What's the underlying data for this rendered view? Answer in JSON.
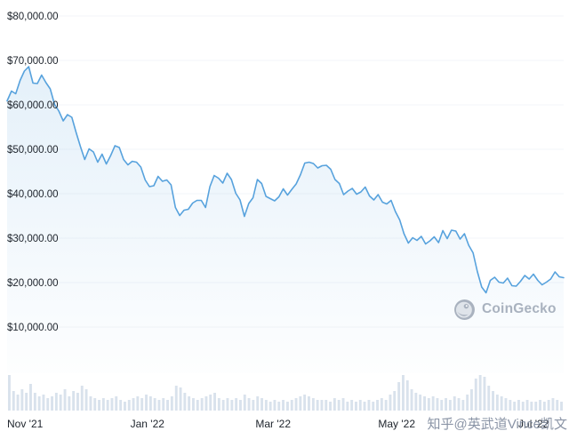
{
  "watermarks": {
    "coingecko_label": "CoinGecko",
    "zhihu": "知乎@英武道Vince凯文"
  },
  "colors": {
    "line": "#57a2dd",
    "area_fill": "#57a2dd",
    "volume": "#d9e2ec",
    "grid": "#f3f5f8",
    "axis_text": "#20262e",
    "watermark_text": "#8a94a6",
    "logo_gray": "#a9b2bf"
  },
  "chart_data": {
    "type": "line",
    "title": "",
    "xlabel": "",
    "ylabel": "",
    "ylim": [
      10000,
      80000
    ],
    "grid": "faint-horizontal",
    "legend": "none",
    "y_ticks": [
      {
        "value": 80000,
        "label": "$80,000.00"
      },
      {
        "value": 70000,
        "label": "$70,000.00"
      },
      {
        "value": 60000,
        "label": "$60,000.00"
      },
      {
        "value": 50000,
        "label": "$50,000.00"
      },
      {
        "value": 40000,
        "label": "$40,000.00"
      },
      {
        "value": 30000,
        "label": "$30,000.00"
      },
      {
        "value": 20000,
        "label": "$20,000.00"
      },
      {
        "value": 10000,
        "label": "$10,000.00"
      }
    ],
    "x_ticks": [
      {
        "label": "Nov '21",
        "f": 0.0,
        "anchor": "start"
      },
      {
        "label": "Jan '22",
        "f": 0.252
      },
      {
        "label": "Mar '22",
        "f": 0.478
      },
      {
        "label": "May '22",
        "f": 0.7
      },
      {
        "label": "Jul '22",
        "f": 0.946
      }
    ],
    "series": [
      {
        "name": "price_usd",
        "values": [
          60900,
          63100,
          62500,
          65500,
          67600,
          68600,
          64900,
          64800,
          66700,
          65000,
          63600,
          60100,
          58600,
          56400,
          57800,
          57200,
          53800,
          50600,
          47700,
          50100,
          49400,
          47100,
          48900,
          46700,
          48600,
          50800,
          50400,
          47700,
          46500,
          47300,
          47100,
          46000,
          43100,
          41600,
          41800,
          43900,
          42800,
          43100,
          42000,
          36900,
          35100,
          36300,
          36500,
          37900,
          38500,
          38500,
          36900,
          41600,
          44100,
          43500,
          42400,
          44600,
          43200,
          40100,
          38600,
          34900,
          37800,
          39100,
          43200,
          42300,
          39400,
          38900,
          38400,
          39300,
          41100,
          39700,
          41000,
          42200,
          44300,
          46900,
          47100,
          46800,
          45800,
          46300,
          46400,
          45500,
          43200,
          42300,
          39800,
          40600,
          41200,
          39900,
          40400,
          41500,
          39500,
          38600,
          39800,
          38100,
          37700,
          38500,
          36000,
          34100,
          31000,
          28900,
          30100,
          29500,
          30400,
          28700,
          29400,
          30300,
          29000,
          31700,
          29900,
          31800,
          31600,
          29800,
          31000,
          28400,
          26700,
          22500,
          19000,
          17700,
          20500,
          21200,
          20100,
          19900,
          21000,
          19300,
          19200,
          20300,
          21600,
          20800,
          21900,
          20500,
          19500,
          20100,
          20800,
          22400,
          21300,
          21100
        ]
      }
    ],
    "volume_relative": [
      1.0,
      0.55,
      0.45,
      0.6,
      0.5,
      0.75,
      0.5,
      0.4,
      0.45,
      0.35,
      0.4,
      0.5,
      0.45,
      0.6,
      0.4,
      0.55,
      0.5,
      0.7,
      0.6,
      0.4,
      0.35,
      0.3,
      0.35,
      0.3,
      0.35,
      0.4,
      0.3,
      0.25,
      0.3,
      0.35,
      0.4,
      0.35,
      0.45,
      0.4,
      0.35,
      0.3,
      0.35,
      0.3,
      0.4,
      0.7,
      0.65,
      0.5,
      0.4,
      0.35,
      0.3,
      0.35,
      0.4,
      0.45,
      0.5,
      0.35,
      0.3,
      0.35,
      0.3,
      0.35,
      0.3,
      0.45,
      0.35,
      0.3,
      0.4,
      0.35,
      0.3,
      0.25,
      0.3,
      0.25,
      0.3,
      0.25,
      0.3,
      0.35,
      0.4,
      0.45,
      0.4,
      0.35,
      0.3,
      0.3,
      0.3,
      0.25,
      0.35,
      0.3,
      0.35,
      0.25,
      0.3,
      0.25,
      0.3,
      0.25,
      0.3,
      0.25,
      0.3,
      0.35,
      0.3,
      0.45,
      0.55,
      0.8,
      1.0,
      0.85,
      0.6,
      0.5,
      0.45,
      0.4,
      0.35,
      0.4,
      0.35,
      0.3,
      0.35,
      0.3,
      0.4,
      0.35,
      0.3,
      0.45,
      0.6,
      0.9,
      1.0,
      0.95,
      0.7,
      0.55,
      0.45,
      0.4,
      0.35,
      0.3,
      0.25,
      0.3,
      0.25,
      0.3,
      0.25,
      0.25,
      0.3,
      0.25,
      0.3,
      0.35,
      0.3,
      0.25
    ]
  }
}
